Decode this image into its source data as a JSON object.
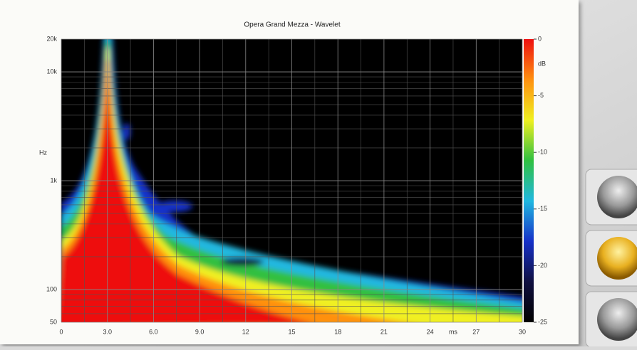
{
  "chart_data": {
    "type": "heatmap",
    "title": "Opera Grand Mezza - Wavelet",
    "xlabel": "ms",
    "ylabel": "Hz",
    "zlabel": "dB",
    "xlim": [
      0,
      30
    ],
    "xticks": [
      0,
      {
        "value": 3,
        "label": "3.0"
      },
      {
        "value": 6,
        "label": "6.0"
      },
      {
        "value": 9,
        "label": "9.0"
      },
      12,
      15,
      18,
      21,
      24,
      27,
      30
    ],
    "ylim": [
      50,
      20000
    ],
    "log_y": true,
    "yticks": [
      50,
      100,
      {
        "value": 1000,
        "label": "1k"
      },
      {
        "value": 10000,
        "label": "10k"
      },
      {
        "value": 20000,
        "label": "20k"
      }
    ],
    "zlim": [
      -25,
      0
    ],
    "zticks": [
      0,
      -5,
      -10,
      -15,
      -20,
      -25
    ],
    "colors": [
      "#000000",
      "#101040",
      "#1530c8",
      "#20b8e0",
      "#30c040",
      "#f0f020",
      "#ff9010",
      "#ee1010"
    ],
    "grid": true
  }
}
